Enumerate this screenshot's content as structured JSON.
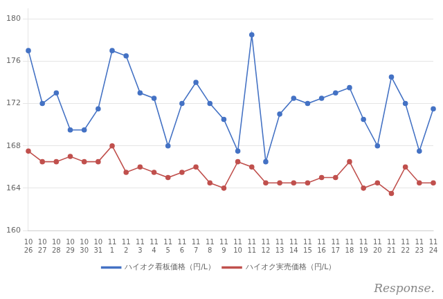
{
  "chart_data": {
    "type": "line",
    "categories": [
      [
        "10",
        "26"
      ],
      [
        "10",
        "27"
      ],
      [
        "10",
        "28"
      ],
      [
        "10",
        "29"
      ],
      [
        "10",
        "30"
      ],
      [
        "10",
        "31"
      ],
      [
        "11",
        "1"
      ],
      [
        "11",
        "2"
      ],
      [
        "11",
        "3"
      ],
      [
        "11",
        "4"
      ],
      [
        "11",
        "5"
      ],
      [
        "11",
        "6"
      ],
      [
        "11",
        "7"
      ],
      [
        "11",
        "8"
      ],
      [
        "11",
        "9"
      ],
      [
        "11",
        "10"
      ],
      [
        "11",
        "11"
      ],
      [
        "11",
        "12"
      ],
      [
        "11",
        "13"
      ],
      [
        "11",
        "14"
      ],
      [
        "11",
        "15"
      ],
      [
        "11",
        "16"
      ],
      [
        "11",
        "17"
      ],
      [
        "11",
        "18"
      ],
      [
        "11",
        "19"
      ],
      [
        "11",
        "20"
      ],
      [
        "11",
        "21"
      ],
      [
        "11",
        "22"
      ],
      [
        "11",
        "23"
      ],
      [
        "11",
        "24"
      ]
    ],
    "series": [
      {
        "name": "ハイオク看板価格（円/L）",
        "color": "#4472C4",
        "marker": "circle",
        "values": [
          177.0,
          172.0,
          173.0,
          169.5,
          169.5,
          171.5,
          177.0,
          176.5,
          173.0,
          172.5,
          168.0,
          172.0,
          174.0,
          172.0,
          170.5,
          167.5,
          178.5,
          166.5,
          171.0,
          172.5,
          172.0,
          172.5,
          173.0,
          173.5,
          170.5,
          168.0,
          174.5,
          172.0,
          167.5,
          171.5
        ]
      },
      {
        "name": "ハイオク実売価格（円/L）",
        "color": "#C0504D",
        "marker": "circle",
        "values": [
          167.5,
          166.5,
          166.5,
          167.0,
          166.5,
          166.5,
          168.0,
          165.5,
          166.0,
          165.5,
          165.0,
          165.5,
          166.0,
          164.5,
          164.0,
          166.5,
          166.0,
          164.5,
          164.5,
          164.5,
          164.5,
          165.0,
          165.0,
          166.5,
          164.0,
          164.5,
          163.5,
          166.0,
          164.5,
          164.5
        ]
      }
    ],
    "ylim": [
      160,
      181
    ],
    "yticks": [
      160,
      164,
      168,
      172,
      176,
      180
    ],
    "grid": "y",
    "legend": "bottom",
    "annotations": [
      "Response."
    ]
  }
}
